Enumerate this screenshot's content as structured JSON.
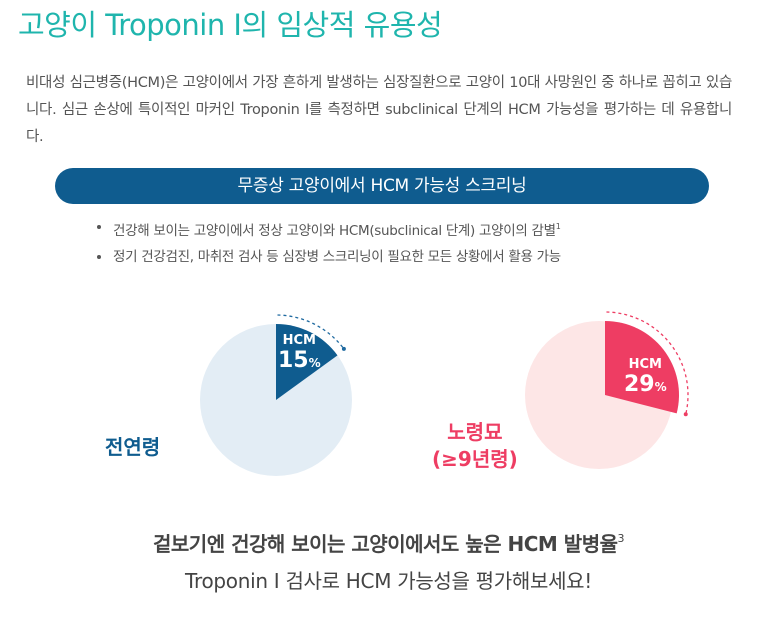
{
  "title": "고양이 Troponin I의 임상적 유용성",
  "intro": "비대성 심근병증(HCM)은 고양이에서 가장 흔하게 발생하는 심장질환으로 고양이 10대 사망원인 중 하나로 꼽히고 있습니다. 심근 손상에 특이적인 마커인 Troponin I를 측정하면 subclinical 단계의 HCM 가능성을 평가하는 데 유용합니다.",
  "banner": "무증상 고양이에서 HCM 가능성 스크리닝",
  "bullets": [
    {
      "text": "건강해 보이는 고양이에서 정상 고양이와 HCM(subclinical 단계) 고양이의 감별",
      "sup": "1"
    },
    {
      "text": "정기 건강검진, 마취전 검사 등 심장병 스크리닝이 필요한 모든 상황에서 활용 가능",
      "sup": ""
    }
  ],
  "pies": [
    {
      "group": "전연령",
      "slice_label": "HCM",
      "value": 15,
      "unit": "%",
      "color": "#0f5c8f",
      "bg_color": "#e3edf5",
      "dash_color": "#1f6aa0"
    },
    {
      "group_line1": "노령묘",
      "group_line2": "(≥9년령)",
      "slice_label": "HCM",
      "value": 29,
      "unit": "%",
      "color": "#ee3d63",
      "bg_color": "#fde6e6",
      "dash_color": "#ee3d63"
    }
  ],
  "closing": {
    "line1": "겉보기엔 건강해 보이는 고양이에서도 높은 HCM 발병율",
    "line1_sup": "3",
    "line2": "Troponin I 검사로 HCM 가능성을 평가해보세요!"
  }
}
